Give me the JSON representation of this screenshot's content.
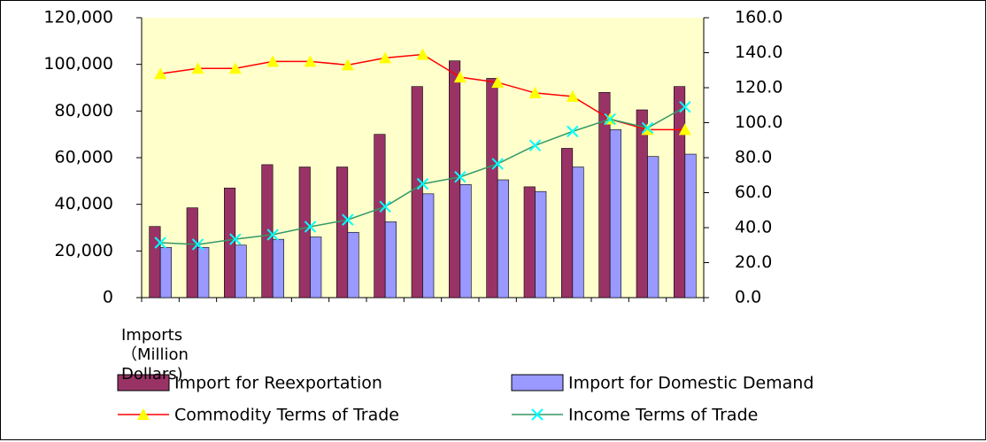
{
  "chart_data": {
    "type": "bar_line",
    "y_label": "Imports （Million Dollars)",
    "categories": [
      null,
      null,
      null,
      null,
      null,
      null,
      null,
      null,
      null,
      null,
      null,
      null,
      null,
      null,
      null
    ],
    "series": [
      {
        "name": "Import for Reexportation",
        "type": "bar",
        "color": "#993366",
        "values": [
          30500,
          38500,
          47000,
          57000,
          56000,
          56000,
          70000,
          90500,
          101500,
          94000,
          47500,
          64000,
          88000,
          80500,
          90500
        ]
      },
      {
        "name": "Import for Domestic Demand",
        "type": "bar",
        "color": "#9999ff",
        "values": [
          21500,
          21500,
          22500,
          25000,
          26000,
          28000,
          32500,
          44500,
          48500,
          50500,
          45500,
          56000,
          72000,
          60500,
          61500
        ]
      },
      {
        "name": "Commodity Terms of Trade",
        "type": "line",
        "axis": "y2",
        "color": "#ff0000",
        "marker": "triangle",
        "marker_color": "#ffff00",
        "values": [
          128,
          131,
          131,
          135,
          135,
          133,
          137,
          139,
          126,
          123,
          117,
          115,
          102,
          96,
          96
        ]
      },
      {
        "name": "Income Terms of Trade",
        "type": "line",
        "axis": "y2",
        "color": "#339966",
        "marker": "x",
        "marker_color": "#00ffff",
        "values": [
          31.4,
          30.4,
          33.4,
          36,
          40.5,
          44.5,
          52,
          65,
          69,
          76.5,
          87,
          95,
          102,
          97,
          109
        ]
      }
    ],
    "ylim": [
      0,
      120000
    ],
    "yticks": [
      0,
      {
        "value": 20000,
        "label": "20,000"
      },
      {
        "value": 40000,
        "label": "40,000"
      },
      {
        "value": 60000,
        "label": "60,000"
      },
      {
        "value": 80000,
        "label": "80,000"
      },
      {
        "value": 100000,
        "label": "100,000"
      },
      {
        "value": 120000,
        "label": "120,000"
      }
    ],
    "y2lim": [
      0,
      160
    ],
    "y2ticks": [
      {
        "value": 0,
        "label": "0.0"
      },
      {
        "value": 20,
        "label": "20.0"
      },
      {
        "value": 40,
        "label": "40.0"
      },
      {
        "value": 60,
        "label": "60.0"
      },
      {
        "value": 80,
        "label": "80.0"
      },
      {
        "value": 100,
        "label": "100.0"
      },
      {
        "value": 120,
        "label": "120.0"
      },
      {
        "value": 140,
        "label": "140.0"
      },
      {
        "value": 160,
        "label": "160.0"
      }
    ],
    "plot_background": "#ffffcc"
  }
}
